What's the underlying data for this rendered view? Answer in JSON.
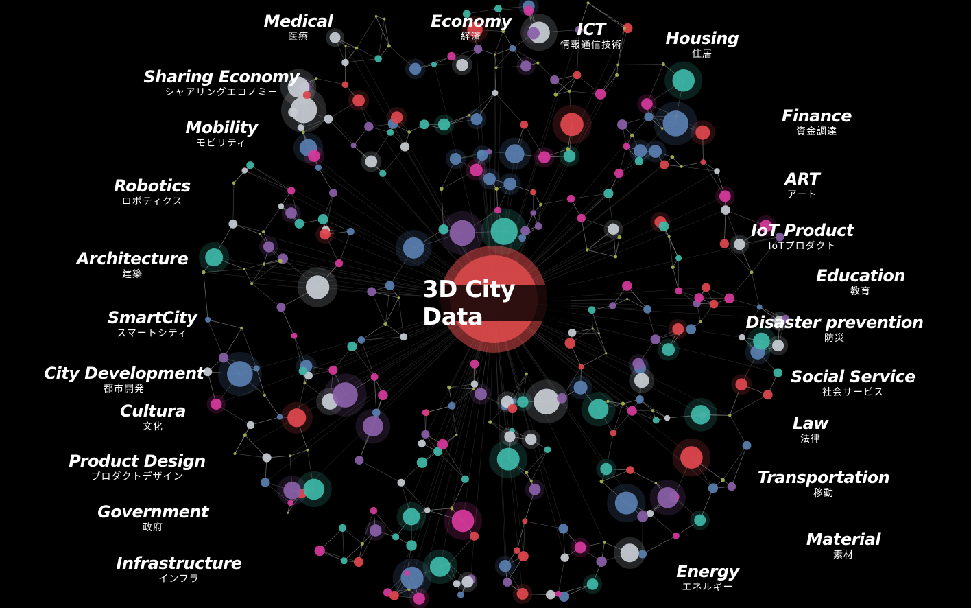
{
  "center": {
    "title": "3D City Data"
  },
  "categories": [
    {
      "en": "Medical",
      "ja": "医療"
    },
    {
      "en": "Economy",
      "ja": "経済"
    },
    {
      "en": "ICT",
      "ja": "情報通信技術"
    },
    {
      "en": "Housing",
      "ja": "住居"
    },
    {
      "en": "Sharing Economy",
      "ja": "シャアリングエコノミー"
    },
    {
      "en": "Finance",
      "ja": "資金調達"
    },
    {
      "en": "Mobility",
      "ja": "モビリティ"
    },
    {
      "en": "ART",
      "ja": "アート"
    },
    {
      "en": "Robotics",
      "ja": "ロボティクス"
    },
    {
      "en": "IoT Product",
      "ja": "IoTプロダクト"
    },
    {
      "en": "Architecture",
      "ja": "建築"
    },
    {
      "en": "Education",
      "ja": "教育"
    },
    {
      "en": "SmartCity",
      "ja": "スマートシティ"
    },
    {
      "en": "Disaster prevention",
      "ja": "防災"
    },
    {
      "en": "City Development",
      "ja": "都市開発"
    },
    {
      "en": "Social Service",
      "ja": "社会サービス"
    },
    {
      "en": "Cultura",
      "ja": "文化"
    },
    {
      "en": "Law",
      "ja": "法律"
    },
    {
      "en": "Product Design",
      "ja": "プロダクトデザイン"
    },
    {
      "en": "Transportation",
      "ja": "移動"
    },
    {
      "en": "Government",
      "ja": "政府"
    },
    {
      "en": "Material",
      "ja": "素材"
    },
    {
      "en": "Infrastructure",
      "ja": "インフラ"
    },
    {
      "en": "Energy",
      "ja": "エネルギー"
    }
  ],
  "node_colors": [
    "#c8cdd4",
    "#3fb8a8",
    "#d6399c",
    "#e0464e",
    "#8a5fa8",
    "#5a7fb0",
    "#a7b34a"
  ],
  "center_color": "#d9494a",
  "edge_color": "#9a9a9a"
}
